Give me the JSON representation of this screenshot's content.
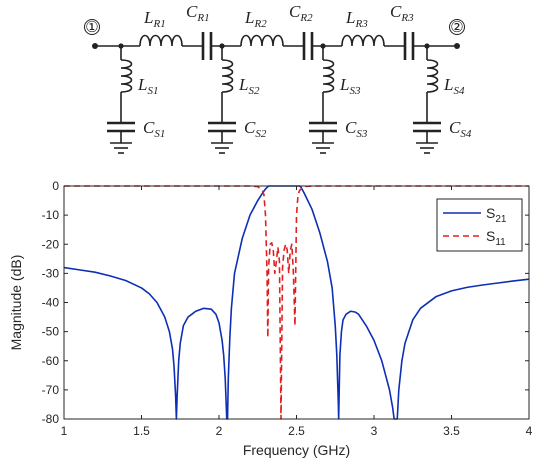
{
  "circuit": {
    "ports": [
      "①",
      "②"
    ],
    "series": [
      {
        "L": "L",
        "L_sub": "R1",
        "C": "C",
        "C_sub": "R1"
      },
      {
        "L": "L",
        "L_sub": "R2",
        "C": "C",
        "C_sub": "R2"
      },
      {
        "L": "L",
        "L_sub": "R3",
        "C": "C",
        "C_sub": "R3"
      }
    ],
    "shunt": [
      {
        "L": "L",
        "L_sub": "S1",
        "C": "C",
        "C_sub": "S1"
      },
      {
        "L": "L",
        "L_sub": "S2",
        "C": "C",
        "C_sub": "S2"
      },
      {
        "L": "L",
        "L_sub": "S3",
        "C": "C",
        "C_sub": "S3"
      },
      {
        "L": "L",
        "L_sub": "S4",
        "C": "C",
        "C_sub": "S4"
      }
    ]
  },
  "chart_data": {
    "type": "line",
    "xlabel": "Frequency (GHz)",
    "ylabel": "Magnitude (dB)",
    "xlim": [
      1,
      4
    ],
    "ylim": [
      -80,
      0
    ],
    "xticks": [
      1,
      1.5,
      2,
      2.5,
      3,
      3.5,
      4
    ],
    "xtick_labels": [
      "1",
      "1.5",
      "2",
      "2.5",
      "3",
      "3.5",
      "4"
    ],
    "yticks": [
      0,
      -10,
      -20,
      -30,
      -40,
      -50,
      -60,
      -70,
      -80
    ],
    "ytick_labels": [
      "0",
      "-10",
      "-20",
      "-30",
      "-40",
      "-50",
      "-60",
      "-70",
      "-80"
    ],
    "grid": false,
    "legend_position": "top-right",
    "series": [
      {
        "name": "S",
        "name_sub": "21",
        "color": "#0d2fb5",
        "dash": "solid",
        "x": [
          1.0,
          1.1,
          1.2,
          1.3,
          1.4,
          1.5,
          1.55,
          1.6,
          1.65,
          1.68,
          1.7,
          1.71,
          1.72,
          1.725,
          1.73,
          1.74,
          1.75,
          1.77,
          1.8,
          1.85,
          1.9,
          1.95,
          1.98,
          2.0,
          2.02,
          2.03,
          2.04,
          2.05,
          2.055,
          2.06,
          2.07,
          2.08,
          2.1,
          2.15,
          2.2,
          2.25,
          2.28,
          2.3,
          2.31,
          2.32,
          2.33,
          2.35,
          2.4,
          2.45,
          2.5,
          2.52,
          2.53,
          2.55,
          2.6,
          2.65,
          2.7,
          2.73,
          2.75,
          2.76,
          2.77,
          2.772,
          2.78,
          2.79,
          2.8,
          2.82,
          2.85,
          2.88,
          2.9,
          2.95,
          3.0,
          3.05,
          3.08,
          3.1,
          3.12,
          3.13,
          3.14,
          3.145,
          3.15,
          3.16,
          3.18,
          3.2,
          3.25,
          3.3,
          3.4,
          3.5,
          3.6,
          3.7,
          3.8,
          3.9,
          4.0
        ],
        "y": [
          -28,
          -28.8,
          -29.6,
          -30.9,
          -32.5,
          -35,
          -37,
          -40,
          -45,
          -50,
          -56,
          -62,
          -72,
          -80,
          -72,
          -60,
          -54,
          -48,
          -45,
          -43,
          -42,
          -42.3,
          -44,
          -47,
          -53,
          -58,
          -66,
          -80,
          -80,
          -66,
          -52,
          -42,
          -30,
          -18,
          -10,
          -5,
          -2.5,
          -1,
          -0.5,
          0,
          0,
          0,
          0,
          0,
          0,
          0,
          -0.5,
          -2.5,
          -8,
          -16,
          -26,
          -35,
          -48,
          -58,
          -75,
          -80,
          -58,
          -50,
          -46,
          -44,
          -43,
          -43.3,
          -44,
          -48,
          -53,
          -60,
          -66,
          -70,
          -76,
          -80,
          -80,
          -80,
          -80,
          -70,
          -60,
          -54,
          -46,
          -42,
          -38,
          -36,
          -34.8,
          -34,
          -33.3,
          -32.6,
          -32
        ]
      },
      {
        "name": "S",
        "name_sub": "11",
        "color": "#e02020",
        "dash": "dashed",
        "x": [
          1.0,
          1.5,
          2.0,
          2.2,
          2.25,
          2.28,
          2.29,
          2.3,
          2.31,
          2.315,
          2.32,
          2.33,
          2.34,
          2.35,
          2.36,
          2.37,
          2.38,
          2.39,
          2.4,
          2.41,
          2.42,
          2.43,
          2.44,
          2.45,
          2.46,
          2.47,
          2.48,
          2.49,
          2.5,
          2.51,
          2.52,
          2.55,
          2.6,
          3.0,
          3.5,
          4.0
        ],
        "y": [
          0,
          0,
          0,
          0,
          -0.2,
          -1.5,
          -3,
          -10,
          -30,
          -52,
          -28,
          -20,
          -19.5,
          -22,
          -30,
          -26,
          -21,
          -26,
          -80,
          -28,
          -22,
          -20,
          -22,
          -30,
          -22,
          -20,
          -30,
          -48,
          -10,
          -3,
          -1.5,
          -0.2,
          0,
          0,
          0,
          0
        ]
      }
    ]
  }
}
